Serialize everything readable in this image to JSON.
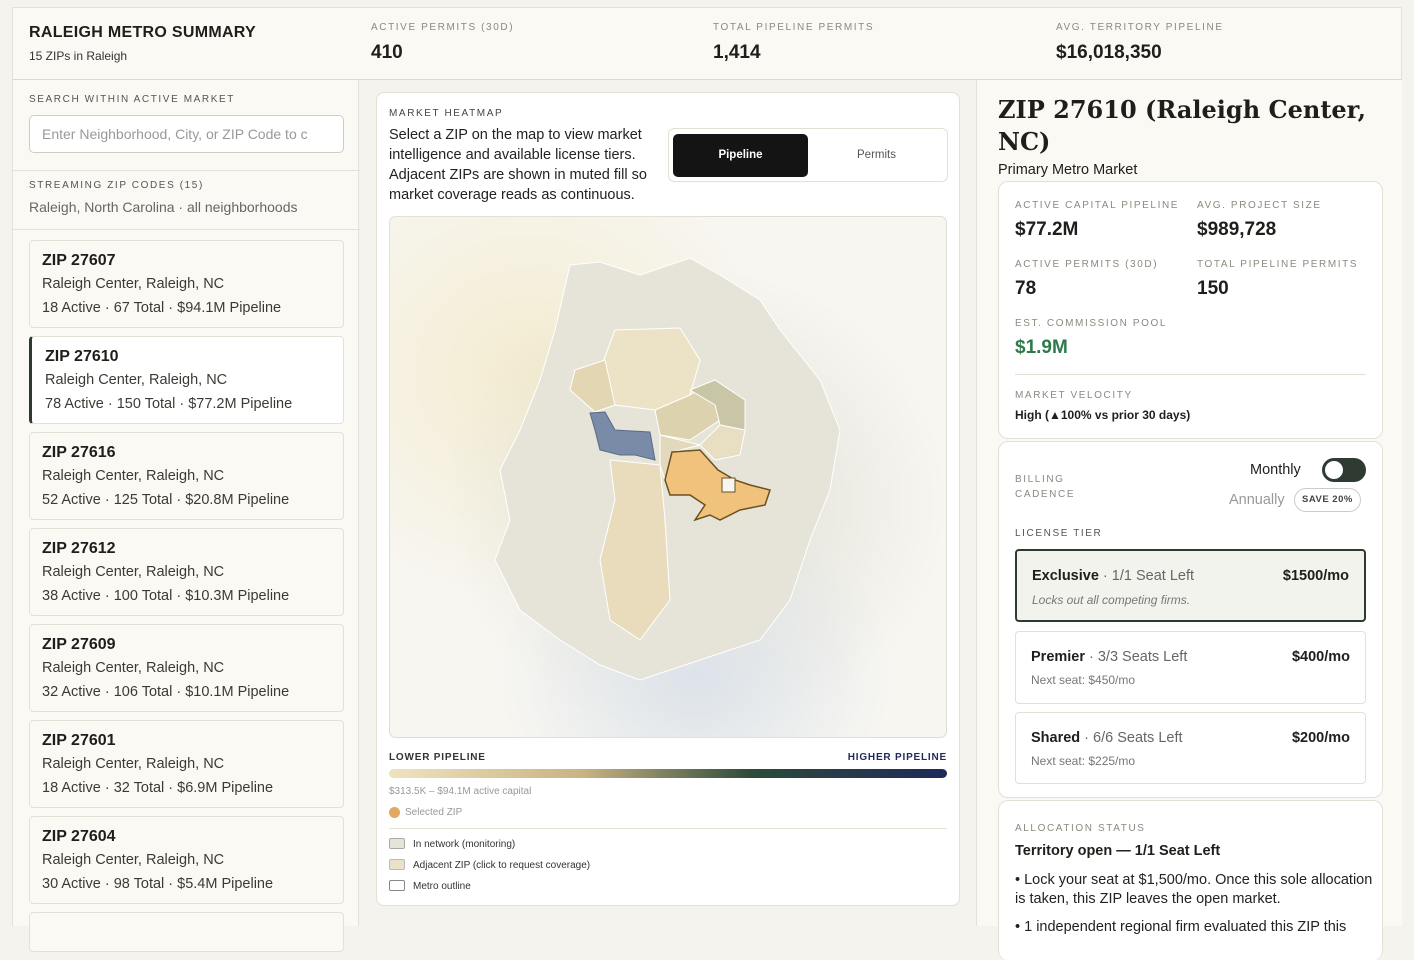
{
  "header": {
    "title": "RALEIGH METRO SUMMARY",
    "subtitle": "15 ZIPs in Raleigh",
    "stats": [
      {
        "label": "ACTIVE PERMITS (30D)",
        "value": "410"
      },
      {
        "label": "TOTAL PIPELINE PERMITS",
        "value": "1,414"
      },
      {
        "label": "AVG. TERRITORY PIPELINE",
        "value": "$16,018,350"
      }
    ]
  },
  "sidebar": {
    "search_label": "SEARCH WITHIN ACTIVE MARKET",
    "search_placeholder": "Enter Neighborhood, City, or ZIP Code to c",
    "list_label": "STREAMING ZIP CODES (15)",
    "list_subtitle": "Raleigh, North Carolina · all neighborhoods",
    "zips": [
      {
        "title": "ZIP 27607",
        "location": "Raleigh Center, Raleigh, NC",
        "stats": "18 Active · 67 Total · $94.1M Pipeline"
      },
      {
        "title": "ZIP 27610",
        "location": "Raleigh Center, Raleigh, NC",
        "stats": "78 Active · 150 Total · $77.2M Pipeline"
      },
      {
        "title": "ZIP 27616",
        "location": "Raleigh Center, Raleigh, NC",
        "stats": "52 Active · 125 Total · $20.8M Pipeline"
      },
      {
        "title": "ZIP 27612",
        "location": "Raleigh Center, Raleigh, NC",
        "stats": "38 Active · 100 Total · $10.3M Pipeline"
      },
      {
        "title": "ZIP 27609",
        "location": "Raleigh Center, Raleigh, NC",
        "stats": "32 Active · 106 Total · $10.1M Pipeline"
      },
      {
        "title": "ZIP 27601",
        "location": "Raleigh Center, Raleigh, NC",
        "stats": "18 Active · 32 Total · $6.9M Pipeline"
      },
      {
        "title": "ZIP 27604",
        "location": "Raleigh Center, Raleigh, NC",
        "stats": "30 Active · 98 Total · $5.4M Pipeline"
      }
    ]
  },
  "map": {
    "label": "MARKET HEATMAP",
    "description": "Select a ZIP on the map to view market intelligence and available license tiers. Adjacent ZIPs are shown in muted fill so market coverage reads as continuous.",
    "toggle": [
      "Pipeline",
      "Permits"
    ],
    "legend_low": "LOWER PIPELINE",
    "legend_high": "HIGHER PIPELINE",
    "range": "$313.5K – $94.1M active capital",
    "selected": "Selected ZIP",
    "key": [
      "In network (monitoring)",
      "Adjacent ZIP (click to request coverage)",
      "Metro outline"
    ]
  },
  "detail": {
    "title": "ZIP 27610 (Raleigh Center, NC)",
    "subtitle": "Primary Metro Market",
    "metrics": [
      {
        "label": "ACTIVE CAPITAL PIPELINE",
        "value": "$77.2M"
      },
      {
        "label": "AVG. PROJECT SIZE",
        "value": "$989,728"
      },
      {
        "label": "ACTIVE PERMITS (30D)",
        "value": "78"
      },
      {
        "label": "TOTAL PIPELINE PERMITS",
        "value": "150"
      },
      {
        "label": "EST. COMMISSION POOL",
        "value": "$1.9M"
      }
    ],
    "velocity_label": "MARKET VELOCITY",
    "velocity": "High (▲100% vs prior 30 days)",
    "billing_label": "BILLING CADENCE",
    "monthly": "Monthly",
    "annually": "Annually",
    "save": "SAVE 20%",
    "tier_label": "LICENSE TIER",
    "tiers": [
      {
        "name": "Exclusive",
        "seats": "· 1/1 Seat Left",
        "price": "$1500/mo",
        "note": "Locks out all competing firms."
      },
      {
        "name": "Premier",
        "seats": "· 3/3 Seats Left",
        "price": "$400/mo",
        "note": "Next seat: $450/mo"
      },
      {
        "name": "Shared",
        "seats": "· 6/6 Seats Left",
        "price": "$200/mo",
        "note": "Next seat: $225/mo"
      }
    ],
    "allocation_label": "ALLOCATION STATUS",
    "allocation_title": "Territory open — 1/1 Seat Left",
    "allocation_items": [
      "• Lock your seat at $1,500/mo. Once this sole allocation is taken, this ZIP leaves the open market.",
      "• 1 independent regional firm evaluated this ZIP this"
    ]
  }
}
